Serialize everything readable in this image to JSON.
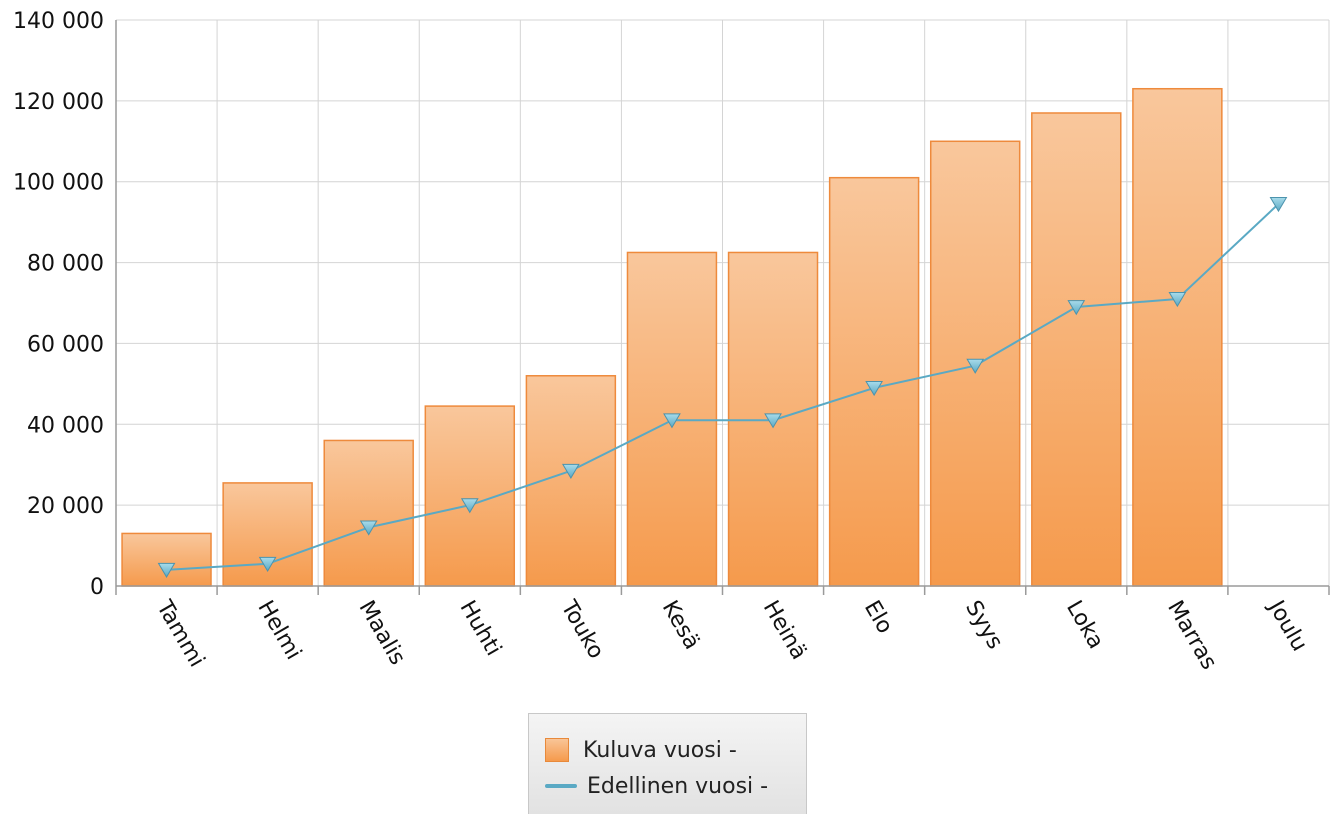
{
  "chart_data": {
    "type": "bar",
    "categories": [
      "Tammi",
      "Helmi",
      "Maalis",
      "Huhti",
      "Touko",
      "Kesä",
      "Heinä",
      "Elo",
      "Syys",
      "Loka",
      "Marras",
      "Joulu"
    ],
    "series": [
      {
        "name": "Kuluva vuosi -",
        "type": "bar",
        "values": [
          13000,
          25500,
          36000,
          44500,
          52000,
          82500,
          82500,
          101000,
          110000,
          117000,
          123000,
          null
        ],
        "color": "#f59a4c"
      },
      {
        "name": "Edellinen vuosi -",
        "type": "line",
        "marker": "triangle-down",
        "values": [
          4000,
          5500,
          14500,
          20000,
          28500,
          41000,
          41000,
          49000,
          54500,
          69000,
          71000,
          94500
        ],
        "color": "#5aa9c4"
      }
    ],
    "ylim": [
      0,
      140000
    ],
    "yticks": [
      0,
      20000,
      40000,
      60000,
      80000,
      100000,
      120000,
      140000
    ],
    "ytick_labels": [
      "0",
      "20 000",
      "40 000",
      "60 000",
      "80 000",
      "100 000",
      "120 000",
      "140 000"
    ],
    "grid": true,
    "legend": "bottom-center"
  },
  "legend": {
    "item1": "Kuluva vuosi -",
    "item2": "Edellinen vuosi -"
  }
}
